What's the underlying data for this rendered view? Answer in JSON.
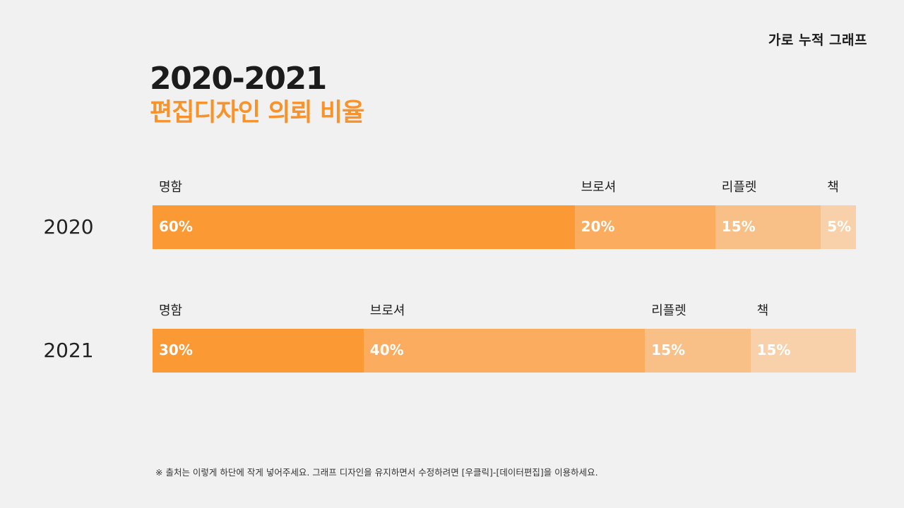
{
  "header": {
    "top_label": "가로 누적 그래프"
  },
  "title": "2020-2021",
  "subtitle": "편집디자인 의뢰 비율",
  "footnote": "※ 출처는 이렇게 하단에 작게 넣어주세요. 그래프 디자인을 유지하면서 수정하려면 [우클릭]-[데이터편집]을 이용하세요.",
  "colors": {
    "accent": "#f7932a",
    "segments": [
      "#fb9935",
      "#fbac5e",
      "#f8bf87",
      "#f8d1ab"
    ]
  },
  "chart_data": {
    "type": "bar",
    "orientation": "horizontal-stacked",
    "categories": [
      "2020",
      "2021"
    ],
    "unit": "%",
    "xlim": [
      0,
      100
    ],
    "series": [
      {
        "name": "명함",
        "values": [
          60,
          30
        ]
      },
      {
        "name": "브로셔",
        "values": [
          20,
          40
        ]
      },
      {
        "name": "리플렛",
        "values": [
          15,
          15
        ]
      },
      {
        "name": "책",
        "values": [
          5,
          15
        ]
      }
    ]
  }
}
